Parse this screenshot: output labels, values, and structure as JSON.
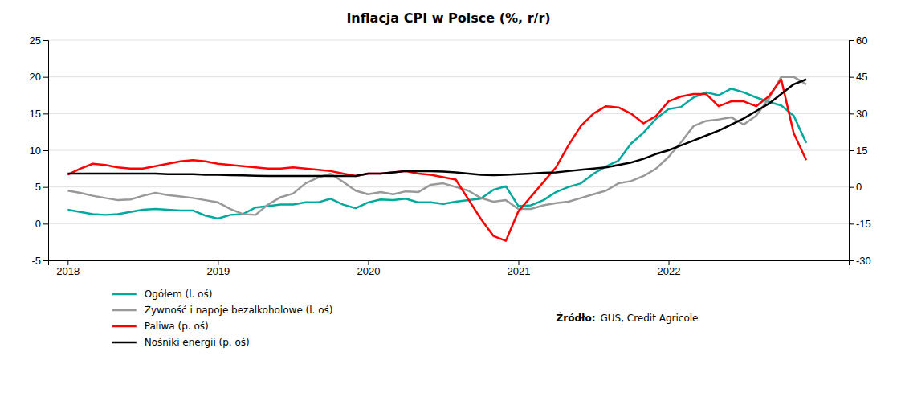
{
  "chart_data": {
    "type": "line",
    "title": "Inflacja CPI w Polsce (%, r/r)",
    "x": [
      2018,
      2018.083333,
      2018.166667,
      2018.25,
      2018.333333,
      2018.416667,
      2018.5,
      2018.583333,
      2018.666667,
      2018.75,
      2018.833333,
      2018.916667,
      2019,
      2019.083333,
      2019.166667,
      2019.25,
      2019.333333,
      2019.416667,
      2019.5,
      2019.583333,
      2019.666667,
      2019.75,
      2019.833333,
      2019.916667,
      2020,
      2020.083333,
      2020.166667,
      2020.25,
      2020.333333,
      2020.416667,
      2020.5,
      2020.583333,
      2020.666667,
      2020.75,
      2020.833333,
      2020.916667,
      2021,
      2021.083333,
      2021.166667,
      2021.25,
      2021.333333,
      2021.416667,
      2021.5,
      2021.583333,
      2021.666667,
      2021.75,
      2021.833333,
      2021.916667,
      2022,
      2022.083333,
      2022.166667,
      2022.25,
      2022.333333,
      2022.416667,
      2022.5,
      2022.583333,
      2022.666667,
      2022.75,
      2022.833333,
      2022.916667
    ],
    "xlim": [
      2017.87,
      2023.2
    ],
    "xticks": [
      2018,
      2019,
      2020,
      2021,
      2022
    ],
    "ylim": [
      -5,
      25
    ],
    "yticks": [
      -5,
      0,
      5,
      10,
      15,
      20,
      25
    ],
    "y2lim": [
      -30,
      60
    ],
    "y2ticks": [
      -30,
      -15,
      0,
      15,
      30,
      45,
      60
    ],
    "grid": true,
    "legend": "lower left",
    "annotations": [
      "Źródło:",
      "GUS, Credit Agricole"
    ],
    "series": [
      {
        "name": "Ogółem (l. oś)",
        "color": "#00a99d",
        "axis": "y",
        "values": [
          1.9,
          1.6,
          1.3,
          1.2,
          1.3,
          1.6,
          1.9,
          2.0,
          1.9,
          1.8,
          1.8,
          1.1,
          0.7,
          1.2,
          1.3,
          2.2,
          2.4,
          2.6,
          2.6,
          2.9,
          2.9,
          3.4,
          2.6,
          2.1,
          2.9,
          3.3,
          3.2,
          3.4,
          2.9,
          2.9,
          2.7,
          3.0,
          3.2,
          3.4,
          4.6,
          5.1,
          2.4,
          2.5,
          3.2,
          4.3,
          5.0,
          5.5,
          6.8,
          7.8,
          8.6,
          10.9,
          12.4,
          14.3,
          15.6,
          15.9,
          17.2,
          17.9,
          17.5,
          18.4,
          17.9,
          17.2,
          16.6,
          16.1,
          14.7,
          11.0
        ]
      },
      {
        "name": "Żywność i napoje bezalkoholowe (l. oś)",
        "color": "#999999",
        "axis": "y",
        "values": [
          4.5,
          4.2,
          3.8,
          3.5,
          3.2,
          3.3,
          3.8,
          4.2,
          3.9,
          3.7,
          3.5,
          3.2,
          2.9,
          2.0,
          1.3,
          1.2,
          2.6,
          3.6,
          4.1,
          5.5,
          6.3,
          6.8,
          5.7,
          4.5,
          4.0,
          4.3,
          4.0,
          4.4,
          4.3,
          5.3,
          5.5,
          5.0,
          4.5,
          3.5,
          3.0,
          3.2,
          2.0,
          2.0,
          2.5,
          2.8,
          3.0,
          3.5,
          4.0,
          4.5,
          5.5,
          5.8,
          6.5,
          7.5,
          9.1,
          11.1,
          13.3,
          14.0,
          14.2,
          14.5,
          13.5,
          14.7,
          17.0,
          20.0,
          20.0,
          19.0
        ]
      },
      {
        "name": "Paliwa (p. oś)",
        "color": "#ff0000",
        "axis": "y2",
        "values": [
          5.0,
          7.5,
          9.5,
          9.0,
          8.0,
          7.5,
          7.5,
          8.5,
          9.5,
          10.5,
          11.0,
          10.5,
          9.5,
          9.0,
          8.5,
          8.0,
          7.5,
          7.5,
          8.0,
          7.5,
          7.0,
          6.5,
          5.5,
          4.5,
          5.5,
          5.5,
          6.0,
          6.5,
          5.5,
          5.0,
          4.0,
          3.0,
          -5.0,
          -13.0,
          -20.0,
          -22.0,
          -10.0,
          -4.0,
          2.0,
          8.0,
          17.0,
          25.0,
          30.0,
          33.0,
          32.5,
          30.0,
          26.0,
          29.0,
          35.0,
          37.0,
          38.0,
          38.0,
          33.0,
          35.0,
          35.0,
          33.0,
          37.0,
          44.0,
          22.0,
          11.0
        ]
      },
      {
        "name": "Nośniki energii (p. oś)",
        "color": "#000000",
        "axis": "y2",
        "values": [
          5.5,
          5.5,
          5.5,
          5.5,
          5.5,
          5.5,
          5.5,
          5.5,
          5.2,
          5.2,
          5.2,
          5.0,
          5.0,
          4.8,
          4.7,
          4.6,
          4.5,
          4.5,
          4.5,
          4.5,
          4.5,
          4.5,
          4.5,
          4.5,
          5.5,
          5.5,
          6.0,
          6.5,
          6.5,
          6.5,
          6.3,
          6.0,
          5.5,
          5.0,
          4.8,
          5.0,
          5.2,
          5.5,
          5.8,
          6.0,
          6.5,
          7.0,
          7.5,
          8.0,
          9.0,
          10.0,
          11.5,
          13.5,
          15.0,
          17.0,
          19.0,
          21.0,
          23.0,
          25.5,
          28.0,
          31.0,
          34.0,
          38.0,
          42.0,
          44.0
        ]
      }
    ]
  }
}
